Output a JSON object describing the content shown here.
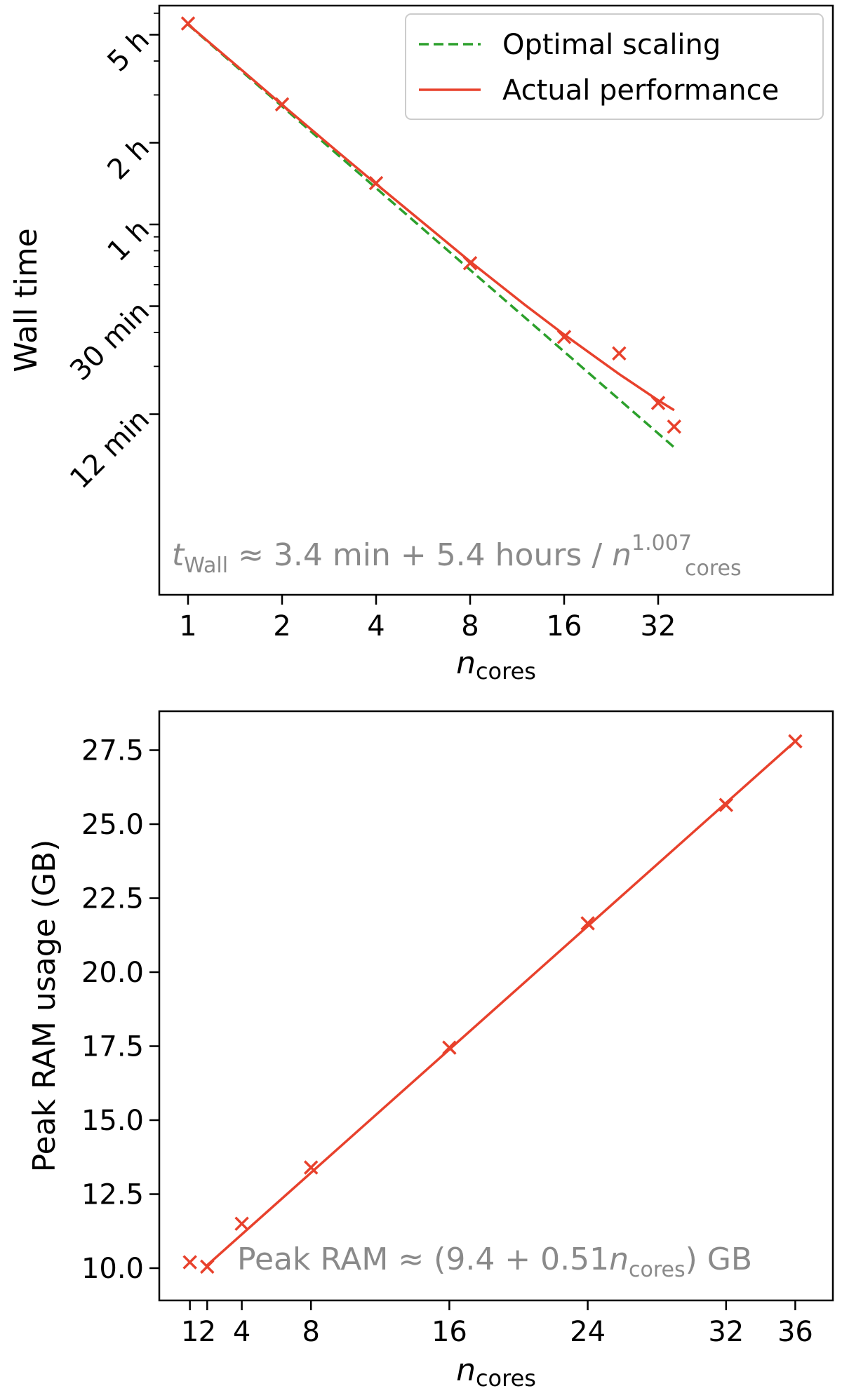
{
  "colors": {
    "actual": "#e8412c",
    "optimal": "#2ca02c",
    "annotation": "#8a8a8a",
    "legend_border": "#cccccc"
  },
  "chart_data": [
    {
      "type": "line",
      "xscale": "log2",
      "yscale": "log",
      "xlabel": "n",
      "xlabel_sub": "cores",
      "ylabel": "Wall time",
      "xlim": [
        0.85,
        38
      ],
      "ylim": [
        0.14,
        6.8
      ],
      "x_ticks": [
        1,
        2,
        4,
        8,
        16,
        32
      ],
      "x_tick_labels": [
        "1",
        "2",
        "4",
        "8",
        "16",
        "32"
      ],
      "y_ticks": [
        0.2,
        0.5,
        1,
        2,
        5
      ],
      "y_tick_labels": [
        "12 min",
        "30 min",
        "1 h",
        "2 h",
        "5 h"
      ],
      "y_minor_ticks": [
        0.3,
        0.4,
        0.6,
        0.7,
        0.8,
        0.9,
        3,
        4,
        6
      ],
      "legend": {
        "position": "top-right",
        "entries": [
          {
            "name": "Optimal scaling",
            "style": "dashed",
            "color": "#2ca02c"
          },
          {
            "name": "Actual performance",
            "style": "solid",
            "color": "#e8412c"
          }
        ]
      },
      "series": [
        {
          "name": "Optimal scaling",
          "kind": "dashed-line",
          "x": [
            1,
            36
          ],
          "y": [
            5.45,
            0.151
          ]
        },
        {
          "name": "Actual performance",
          "kind": "solid-fit-line",
          "x": [
            1,
            1.5,
            2,
            3,
            4,
            6,
            8,
            12,
            16,
            24,
            32,
            36
          ],
          "y": [
            5.46,
            3.67,
            2.76,
            1.86,
            1.41,
            0.96,
            0.73,
            0.505,
            0.393,
            0.281,
            0.225,
            0.207
          ]
        },
        {
          "name": "Measured",
          "kind": "markers",
          "x": [
            1,
            2,
            4,
            8,
            16,
            24,
            32,
            36
          ],
          "y": [
            5.5,
            2.77,
            1.42,
            0.72,
            0.385,
            0.335,
            0.22,
            0.18
          ]
        }
      ],
      "annotation": {
        "t": "t",
        "t_sub": "Wall",
        "body": " ≈ 3.4 min + 5.4 hours / ",
        "n": "n",
        "n_sub": "cores",
        "n_sup": "1.007"
      }
    },
    {
      "type": "line",
      "xscale": "linear",
      "yscale": "linear",
      "xlabel": "n",
      "xlabel_sub": "cores",
      "ylabel": "Peak RAM usage (GB)",
      "xlim": [
        -0.8,
        37.7
      ],
      "ylim": [
        9.4,
        28.8
      ],
      "x_ticks": [
        1,
        2,
        4,
        8,
        16,
        24,
        32,
        36
      ],
      "x_tick_labels": [
        "1",
        "2",
        "4",
        "8",
        "16",
        "24",
        "32",
        "36"
      ],
      "y_ticks": [
        10.0,
        12.5,
        15.0,
        17.5,
        20.0,
        22.5,
        25.0,
        27.5
      ],
      "y_tick_labels": [
        "10.0",
        "12.5",
        "15.0",
        "17.5",
        "20.0",
        "22.5",
        "25.0",
        "27.5"
      ],
      "series": [
        {
          "name": "Fit",
          "kind": "solid-fit-line",
          "x": [
            2,
            36
          ],
          "y": [
            10.1,
            27.8
          ]
        },
        {
          "name": "Measured",
          "kind": "markers",
          "x": [
            1,
            2,
            4,
            8,
            16,
            24,
            32,
            36
          ],
          "y": [
            10.2,
            10.05,
            11.5,
            13.4,
            17.45,
            21.65,
            25.65,
            27.8
          ]
        }
      ],
      "annotation": {
        "label": "Peak RAM",
        "body": "  ≈ (9.4 + 0.51",
        "n": "n",
        "n_sub": "cores",
        "tail": ") GB"
      }
    }
  ]
}
